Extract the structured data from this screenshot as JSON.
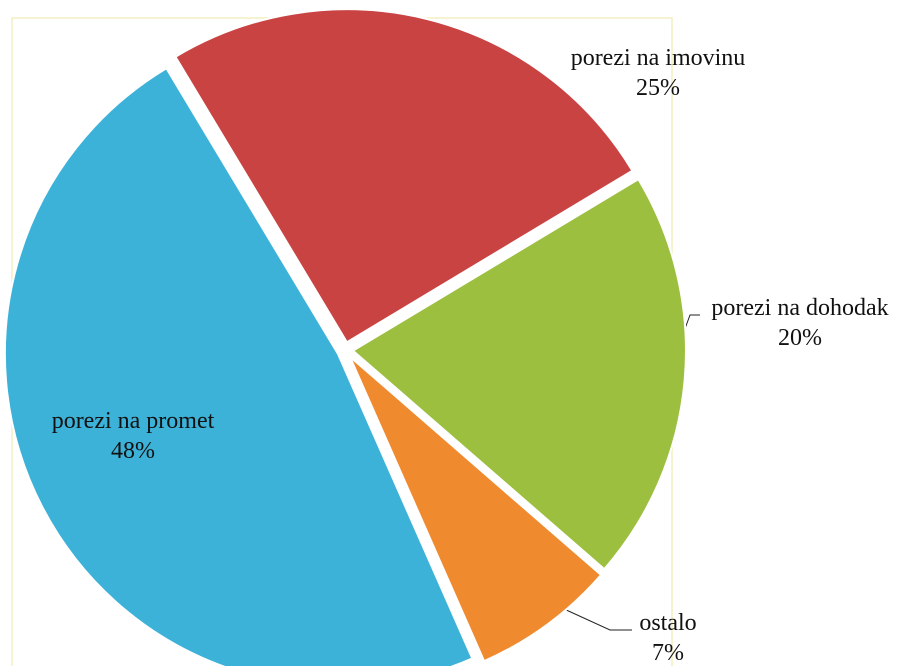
{
  "chart_data": {
    "type": "pie",
    "categories": [
      "porezi na imovinu",
      "porezi na dohodak",
      "ostalo",
      "porezi na promet"
    ],
    "values": [
      25,
      20,
      7,
      48
    ],
    "value_labels": [
      "25%",
      "20%",
      "7%",
      "48%"
    ],
    "colors": [
      "#c94343",
      "#9cbf3f",
      "#f08a2e",
      "#3db2d8"
    ]
  }
}
